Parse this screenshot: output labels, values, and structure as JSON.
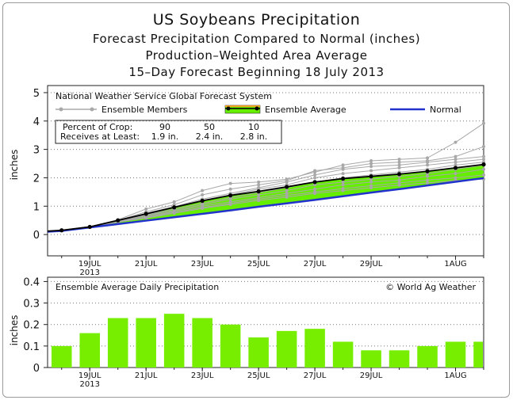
{
  "title": "US Soybeans Precipitation",
  "subtitle_lines": [
    "Forecast Precipitation Compared to Normal (inches)",
    "Production–Weighted Area Average",
    "15–Day Forecast Beginning 18 July 2013"
  ],
  "chart_data": [
    {
      "type": "line",
      "source_label": "National Weather Service Global Forecast System",
      "ylabel": "inches",
      "ylim": [
        -0.75,
        5.25
      ],
      "yticks": [
        "0",
        "1",
        "2",
        "3",
        "4",
        "5"
      ],
      "xlim": [
        17.5,
        33.0
      ],
      "xticks": [
        {
          "label": "19JUL",
          "sub": "2013",
          "x": 19
        },
        {
          "label": "21JUL",
          "sub": "",
          "x": 21
        },
        {
          "label": "23JUL",
          "sub": "",
          "x": 23
        },
        {
          "label": "25JUL",
          "sub": "",
          "x": 25
        },
        {
          "label": "27JUL",
          "sub": "",
          "x": 27
        },
        {
          "label": "29JUL",
          "sub": "",
          "x": 29
        },
        {
          "label": "1AUG",
          "sub": "",
          "x": 32
        }
      ],
      "legend": {
        "members": "Ensemble Members",
        "average": "Ensemble Average",
        "normal": "Normal"
      },
      "colors": {
        "members": "#a8a8a8",
        "average": "#000000",
        "fill": "#66ee00",
        "normal": "#2233cc"
      },
      "percent_table": {
        "row1_label": "Percent of Crop:",
        "row2_label": "Receives at Least:",
        "percents": [
          "90",
          "50",
          "10"
        ],
        "amounts": [
          "1.9 in.",
          "2.4 in.",
          "2.8 in."
        ]
      },
      "x": [
        17.5,
        18,
        19,
        20,
        21,
        22,
        23,
        24,
        25,
        26,
        27,
        28,
        29,
        30,
        31,
        32,
        33
      ],
      "series": [
        {
          "name": "Ensemble Average",
          "values": [
            0.12,
            0.15,
            0.27,
            0.5,
            0.73,
            0.96,
            1.19,
            1.38,
            1.52,
            1.68,
            1.85,
            1.97,
            2.05,
            2.13,
            2.23,
            2.35,
            2.47
          ]
        },
        {
          "name": "Normal",
          "values": [
            0.1,
            0.13,
            0.25,
            0.37,
            0.49,
            0.61,
            0.73,
            0.85,
            0.98,
            1.1,
            1.22,
            1.35,
            1.48,
            1.6,
            1.73,
            1.86,
            1.99
          ]
        }
      ],
      "members": [
        [
          0.12,
          0.15,
          0.28,
          0.52,
          0.9,
          1.15,
          1.55,
          1.8,
          1.85,
          1.95,
          2.2,
          2.45,
          2.6,
          2.65,
          2.7,
          3.25,
          3.92
        ],
        [
          0.12,
          0.15,
          0.28,
          0.5,
          0.8,
          1.05,
          1.4,
          1.6,
          1.75,
          1.9,
          2.25,
          2.35,
          2.5,
          2.55,
          2.6,
          2.75,
          3.1
        ],
        [
          0.12,
          0.15,
          0.27,
          0.5,
          0.75,
          0.98,
          1.25,
          1.45,
          1.65,
          1.85,
          2.1,
          2.3,
          2.4,
          2.45,
          2.55,
          2.65,
          2.75
        ],
        [
          0.12,
          0.15,
          0.27,
          0.48,
          0.7,
          0.95,
          1.2,
          1.4,
          1.6,
          1.75,
          2.0,
          2.15,
          2.25,
          2.35,
          2.45,
          2.55,
          2.65
        ],
        [
          0.12,
          0.15,
          0.27,
          0.48,
          0.68,
          0.9,
          1.1,
          1.3,
          1.48,
          1.65,
          1.85,
          2.0,
          2.1,
          2.2,
          2.3,
          2.45,
          2.55
        ],
        [
          0.12,
          0.15,
          0.26,
          0.46,
          0.66,
          0.85,
          1.05,
          1.25,
          1.4,
          1.55,
          1.75,
          1.85,
          1.95,
          2.05,
          2.15,
          2.3,
          2.45
        ],
        [
          0.12,
          0.15,
          0.26,
          0.45,
          0.62,
          0.82,
          1.0,
          1.15,
          1.3,
          1.45,
          1.6,
          1.75,
          1.85,
          1.92,
          2.05,
          2.15,
          2.3
        ],
        [
          0.12,
          0.15,
          0.26,
          0.44,
          0.6,
          0.78,
          0.95,
          1.1,
          1.25,
          1.38,
          1.5,
          1.62,
          1.72,
          1.82,
          1.92,
          2.0,
          2.1
        ],
        [
          0.12,
          0.15,
          0.26,
          0.44,
          0.58,
          0.75,
          0.92,
          1.06,
          1.2,
          1.32,
          1.45,
          1.55,
          1.65,
          1.74,
          1.82,
          1.9,
          1.95
        ]
      ]
    },
    {
      "type": "bar",
      "title": "Ensemble Average Daily Precipitation",
      "credit": "© World Ag Weather",
      "ylabel": "inches",
      "ylim": [
        0,
        0.42
      ],
      "yticks": [
        "0",
        "0.1",
        "0.2",
        "0.3",
        "0.4"
      ],
      "xlim": [
        17.5,
        33.0
      ],
      "xticks": [
        {
          "label": "19JUL",
          "sub": "2013",
          "x": 19
        },
        {
          "label": "21JUL",
          "sub": "",
          "x": 21
        },
        {
          "label": "23JUL",
          "sub": "",
          "x": 23
        },
        {
          "label": "25JUL",
          "sub": "",
          "x": 25
        },
        {
          "label": "27JUL",
          "sub": "",
          "x": 27
        },
        {
          "label": "29JUL",
          "sub": "",
          "x": 29
        },
        {
          "label": "1AUG",
          "sub": "",
          "x": 32
        }
      ],
      "x": [
        18,
        19,
        20,
        21,
        22,
        23,
        24,
        25,
        26,
        27,
        28,
        29,
        30,
        31,
        32,
        33
      ],
      "values": [
        0.1,
        0.16,
        0.23,
        0.23,
        0.25,
        0.23,
        0.2,
        0.14,
        0.17,
        0.18,
        0.12,
        0.08,
        0.08,
        0.1,
        0.12,
        0.12
      ],
      "color": "#77ee00"
    }
  ]
}
